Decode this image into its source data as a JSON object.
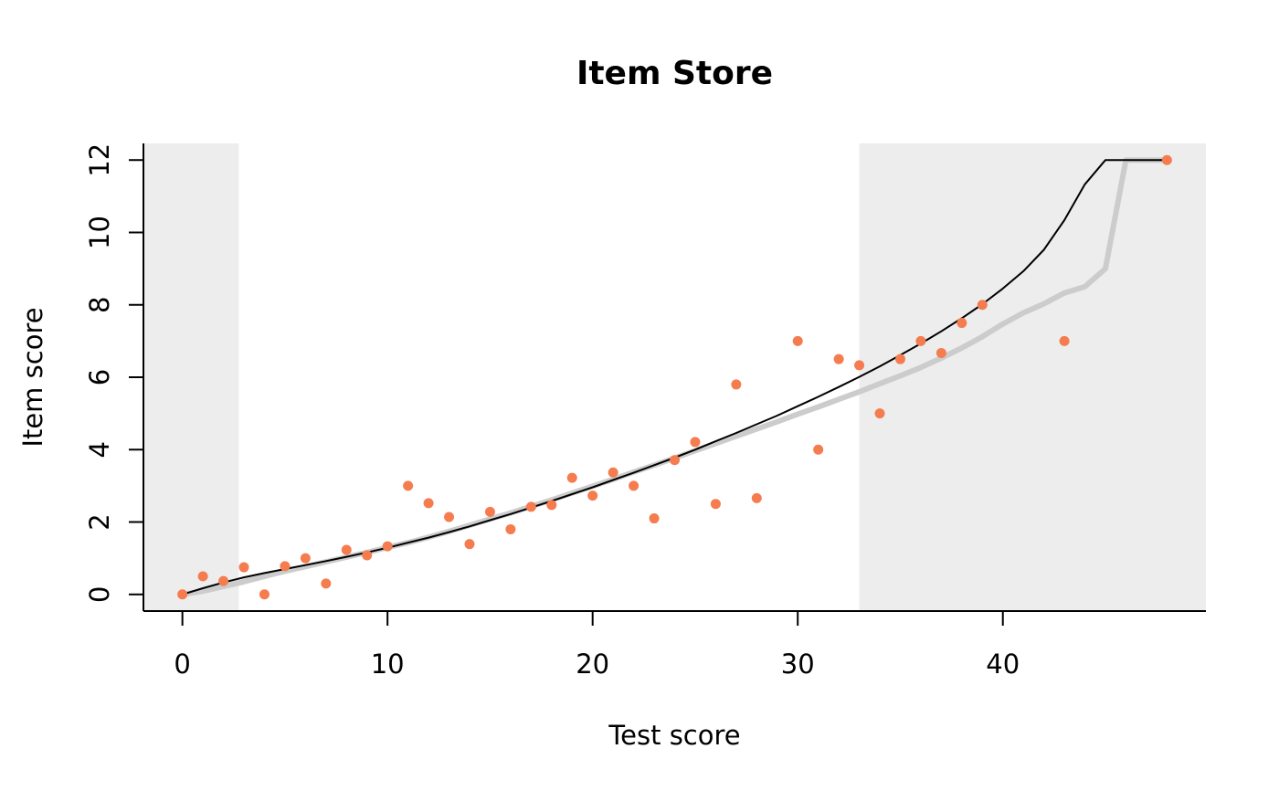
{
  "chart_data": {
    "type": "scatter",
    "title": "Item Store",
    "xlabel": "Test score",
    "ylabel": "Item score",
    "xlim": [
      -1.9,
      49.9
    ],
    "ylim": [
      -0.46,
      12.46
    ],
    "x_ticks": [
      0,
      10,
      20,
      30,
      40
    ],
    "y_ticks": [
      0,
      2,
      4,
      6,
      8,
      10,
      12
    ],
    "shaded_regions": [
      [
        -1.9,
        2.75
      ],
      [
        33,
        49.9
      ]
    ],
    "grid": false,
    "legend": "none",
    "colors": {
      "points": "#F57C4F",
      "fit_line": "#000000",
      "smooth_line": "#CCCCCC",
      "shade": "#EDEDED"
    },
    "series": [
      {
        "type": "scatter",
        "x": [
          0,
          1,
          2,
          3,
          4,
          5,
          6,
          7,
          8,
          9,
          10,
          11,
          12,
          13,
          14,
          15,
          16,
          17,
          18,
          19,
          20,
          21,
          22,
          23,
          24,
          25,
          26,
          27,
          28,
          30,
          31,
          32,
          33,
          34,
          35,
          36,
          37,
          38,
          39,
          43,
          48
        ],
        "y": [
          0,
          0.5,
          0.37,
          0.75,
          0,
          0.78,
          1,
          0.3,
          1.23,
          1.08,
          1.33,
          3,
          2.52,
          2.14,
          1.39,
          2.28,
          1.8,
          2.42,
          2.47,
          3.22,
          2.73,
          3.37,
          3,
          2.1,
          3.71,
          4.21,
          2.5,
          5.8,
          2.66,
          7,
          4,
          6.5,
          6.33,
          5,
          6.5,
          7,
          6.67,
          7.5,
          8,
          7,
          12
        ]
      },
      {
        "type": "line",
        "x": [
          0,
          1,
          2,
          3,
          4,
          5,
          6,
          7,
          8,
          9,
          10,
          11,
          12,
          13,
          14,
          15,
          16,
          17,
          18,
          19,
          20,
          21,
          22,
          23,
          24,
          25,
          26,
          27,
          28,
          29,
          30,
          31,
          32,
          33,
          34,
          35,
          36,
          37,
          38,
          39,
          40,
          41,
          42,
          43,
          44,
          45,
          46,
          47,
          48
        ],
        "y": [
          0,
          0.09,
          0.22,
          0.35,
          0.5,
          0.64,
          0.77,
          0.9,
          1.03,
          1.16,
          1.3,
          1.43,
          1.58,
          1.74,
          1.91,
          2.08,
          2.25,
          2.43,
          2.61,
          2.8,
          2.99,
          3.18,
          3.38,
          3.57,
          3.77,
          3.97,
          4.17,
          4.37,
          4.57,
          4.77,
          4.98,
          5.18,
          5.39,
          5.6,
          5.82,
          6.04,
          6.27,
          6.53,
          6.81,
          7.12,
          7.47,
          7.78,
          8.03,
          8.33,
          8.5,
          9,
          12,
          12,
          12
        ]
      },
      {
        "type": "line",
        "x": [
          0,
          1,
          2,
          3,
          4,
          5,
          6,
          7,
          8,
          9,
          10,
          11,
          12,
          13,
          14,
          15,
          16,
          17,
          18,
          19,
          20,
          21,
          22,
          23,
          24,
          25,
          26,
          27,
          28,
          29,
          30,
          31,
          32,
          33,
          34,
          35,
          36,
          37,
          38,
          39,
          40,
          41,
          42,
          43,
          44,
          45,
          46,
          47,
          48
        ],
        "y": [
          0,
          0.17,
          0.33,
          0.47,
          0.59,
          0.7,
          0.81,
          0.92,
          1.04,
          1.16,
          1.29,
          1.43,
          1.57,
          1.72,
          1.88,
          2.05,
          2.22,
          2.4,
          2.58,
          2.77,
          2.96,
          3.16,
          3.36,
          3.57,
          3.78,
          4,
          4.23,
          4.46,
          4.7,
          4.94,
          5.2,
          5.46,
          5.73,
          6.01,
          6.3,
          6.61,
          6.93,
          7.27,
          7.63,
          8.02,
          8.45,
          8.93,
          9.52,
          10.34,
          11.33,
          12,
          12,
          12,
          12
        ]
      }
    ]
  }
}
